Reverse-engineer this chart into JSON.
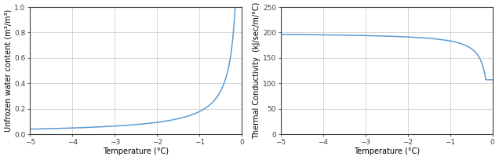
{
  "left": {
    "xlabel": "Temperature (°C)",
    "ylabel": "Unfrozen water content (m³/m³)",
    "xlim": [
      -5,
      0
    ],
    "ylim": [
      0,
      1
    ],
    "xticks": [
      -5,
      -4,
      -3,
      -2,
      -1,
      0
    ],
    "yticks": [
      0,
      0.2,
      0.4,
      0.6,
      0.8,
      1.0
    ],
    "line_color": "#5b9bd5",
    "curve_type": "unfrozen_water"
  },
  "right": {
    "xlabel": "Temperature (°C)",
    "ylabel": "Thermal Conductivity  (kJ/sec/m/°C)",
    "xlim": [
      -5,
      0
    ],
    "ylim": [
      0,
      250
    ],
    "xticks": [
      -5,
      -4,
      -3,
      -2,
      -1,
      0
    ],
    "yticks": [
      0,
      50,
      100,
      150,
      200,
      250
    ],
    "line_color": "#5b9bd5",
    "curve_type": "thermal_conductivity"
  },
  "background_color": "#ffffff",
  "grid_color": "#c8c8c8",
  "spine_color": "#404040",
  "tick_label_fontsize": 6.5,
  "axis_label_fontsize": 7.0,
  "line_width": 1.1
}
